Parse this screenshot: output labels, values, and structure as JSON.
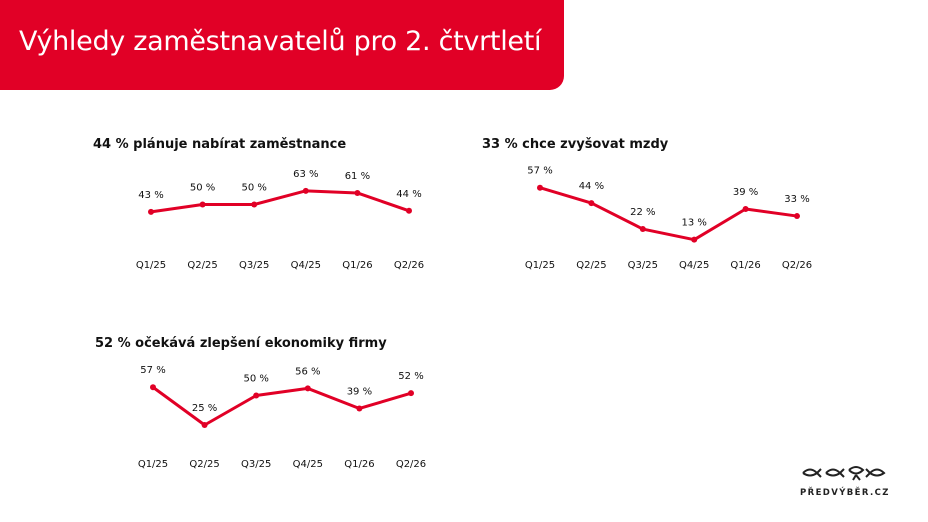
{
  "header": {
    "title": "Výhledy zaměstnavatelů pro 2. čtvrtletí"
  },
  "colors": {
    "brand": "#e10026",
    "line": "#e10026",
    "text": "#111111"
  },
  "logo": {
    "text": "PŘEDVÝBĚR.CZ"
  },
  "chart_data": [
    {
      "type": "line",
      "title": "44 % plánuje nabírat zaměstnance",
      "categories": [
        "Q1/25",
        "Q2/25",
        "Q3/25",
        "Q4/25",
        "Q1/26",
        "Q2/26"
      ],
      "values": [
        43,
        50,
        50,
        63,
        61,
        44
      ],
      "data_labels": [
        "43 %",
        "50 %",
        "50 %",
        "63 %",
        "61 %",
        "44 %"
      ],
      "grid": false
    },
    {
      "type": "line",
      "title": "33 % chce zvyšovat mzdy",
      "categories": [
        "Q1/25",
        "Q2/25",
        "Q3/25",
        "Q4/25",
        "Q1/26",
        "Q2/26"
      ],
      "values": [
        57,
        44,
        22,
        13,
        39,
        33
      ],
      "data_labels": [
        "57 %",
        "44 %",
        "22 %",
        "13 %",
        "39 %",
        "33 %"
      ],
      "grid": false
    },
    {
      "type": "line",
      "title": "52 % očekává zlepšení ekonomiky firmy",
      "categories": [
        "Q1/25",
        "Q2/25",
        "Q3/25",
        "Q4/25",
        "Q1/26",
        "Q2/26"
      ],
      "values": [
        57,
        25,
        50,
        56,
        39,
        52
      ],
      "data_labels": [
        "57 %",
        "25 %",
        "50 %",
        "56 %",
        "39 %",
        "52 %"
      ],
      "grid": false
    }
  ]
}
